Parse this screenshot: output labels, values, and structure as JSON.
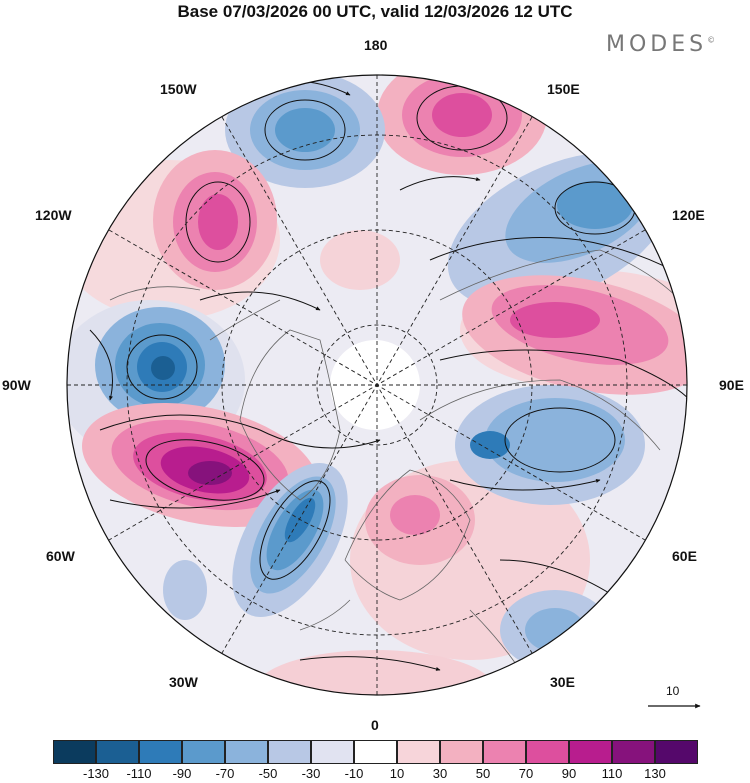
{
  "title": "Base 07/03/2026 00 UTC, valid 12/03/2026 12 UTC",
  "brand": {
    "name": "MODES",
    "mark": "©"
  },
  "longitude_labels": {
    "n180": "180",
    "e150": "150E",
    "e120": "120E",
    "e90": "90E",
    "e60": "60E",
    "e30": "30E",
    "z0": "0",
    "w30": "30W",
    "w60": "60W",
    "w90": "90W",
    "w120": "120W",
    "w150": "150W"
  },
  "reference_vector": {
    "label": "10"
  },
  "colorbar": {
    "colors": [
      "#0b3b5e",
      "#1b5f93",
      "#2e7bb8",
      "#5b9acc",
      "#8bb3dc",
      "#b8c8e5",
      "#e1e3f1",
      "#ffffff",
      "#f7d5da",
      "#f3b1c1",
      "#ec82b0",
      "#dd4f9e",
      "#b81d8e",
      "#86127c",
      "#55086b"
    ],
    "ticks": [
      "-130",
      "-110",
      "-90",
      "-70",
      "-50",
      "-30",
      "-10",
      "10",
      "30",
      "50",
      "70",
      "90",
      "110",
      "130"
    ]
  },
  "map_colors": {
    "land_outline": "#666666",
    "grid": "#222222",
    "arrow": "#111111"
  }
}
